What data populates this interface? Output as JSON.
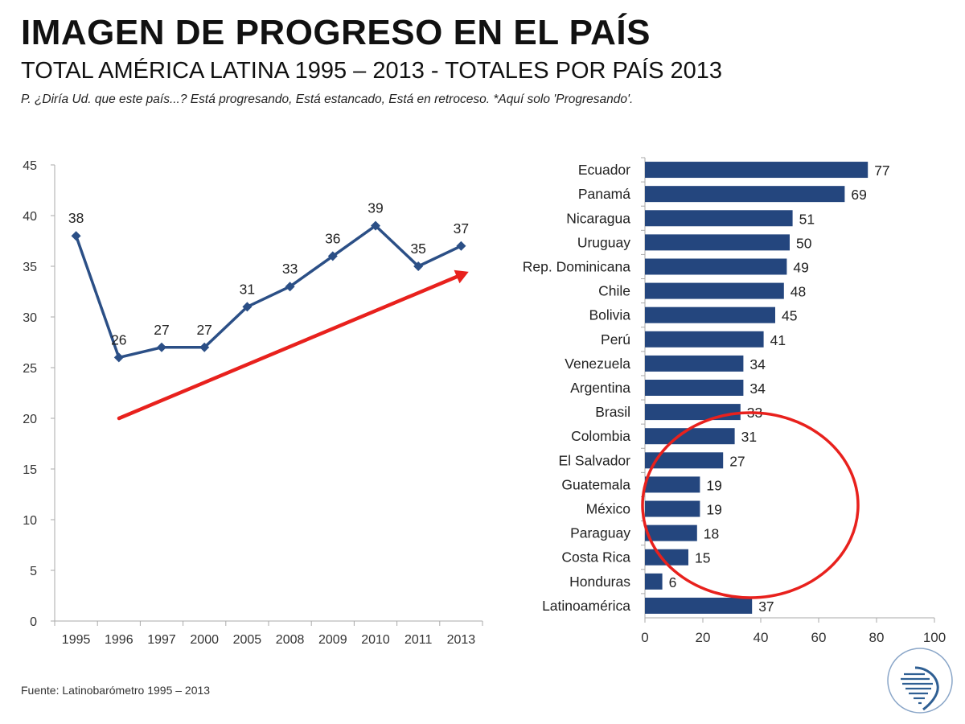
{
  "title": "IMAGEN DE PROGRESO EN EL PAÍS",
  "subtitle": "TOTAL AMÉRICA LATINA 1995 – 2013 - TOTALES POR PAÍS 2013",
  "question": "P. ¿Diría Ud. que este país...? Está progresando, Está estancado, Está en retroceso. *Aquí solo 'Progresando'.",
  "source": "Fuente: Latinobarómetro 1995 – 2013",
  "colors": {
    "series": "#2b4f86",
    "bar": "#24467e",
    "annotation": "#e8211d",
    "axis": "#aaaaaa"
  },
  "chart_data": [
    {
      "type": "line",
      "title": "",
      "categories": [
        "1995",
        "1996",
        "1997",
        "2000",
        "2005",
        "2008",
        "2009",
        "2010",
        "2011",
        "2013"
      ],
      "series": [
        {
          "name": "Progresando",
          "values": [
            38,
            26,
            27,
            27,
            31,
            33,
            36,
            39,
            35,
            37
          ]
        }
      ],
      "ylim": [
        0,
        45
      ],
      "yticks": [
        0,
        5,
        10,
        15,
        20,
        25,
        30,
        35,
        40,
        45
      ],
      "xlabel": "",
      "ylabel": "",
      "grid": false,
      "annotations": [
        "red upward trend arrow"
      ]
    },
    {
      "type": "bar",
      "orientation": "horizontal",
      "categories": [
        "Ecuador",
        "Panamá",
        "Nicaragua",
        "Uruguay",
        "Rep. Dominicana",
        "Chile",
        "Bolivia",
        "Perú",
        "Venezuela",
        "Argentina",
        "Brasil",
        "Colombia",
        "El Salvador",
        "Guatemala",
        "México",
        "Paraguay",
        "Costa Rica",
        "Honduras",
        "Latinoamérica"
      ],
      "values": [
        77,
        69,
        51,
        50,
        49,
        48,
        45,
        41,
        34,
        34,
        33,
        31,
        27,
        19,
        19,
        18,
        15,
        6,
        37
      ],
      "xlim": [
        0,
        100
      ],
      "xticks": [
        0,
        20,
        40,
        60,
        80,
        100
      ],
      "xlabel": "",
      "ylabel": "",
      "grid": false,
      "annotations": [
        "red ellipse around lowest countries"
      ]
    }
  ]
}
